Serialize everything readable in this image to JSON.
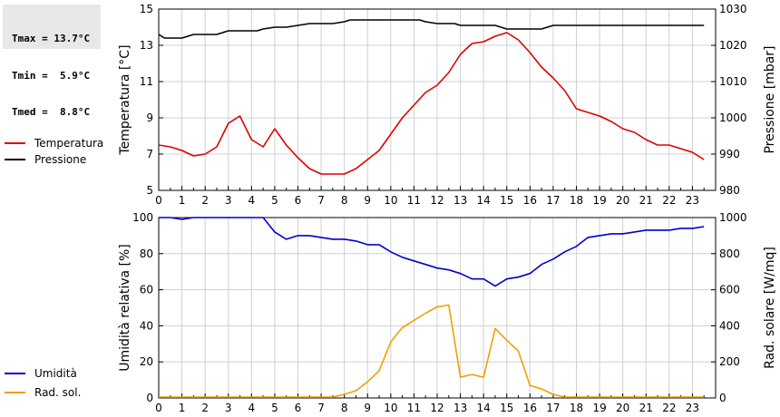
{
  "stats": {
    "tmax": "Tmax = 13.7°C",
    "tmin": "Tmin =  5.9°C",
    "tmed": "Tmed =  8.8°C"
  },
  "colors": {
    "temperatura": "#dd0000",
    "pressione": "#000000",
    "umidita": "#0000cc",
    "radsol": "#f0a000",
    "grid": "#d0d0d0"
  },
  "chart_data": [
    {
      "type": "line",
      "x_ticks": [
        "0",
        "1",
        "2",
        "3",
        "4",
        "5",
        "6",
        "7",
        "8",
        "9",
        "10",
        "11",
        "12",
        "13",
        "14",
        "15",
        "16",
        "17",
        "18",
        "19",
        "20",
        "21",
        "22",
        "23"
      ],
      "xlim": [
        0,
        24
      ],
      "ylabel": "Temperatura [°C]",
      "ylabel_right": "Pressione [mbar]",
      "ylim": [
        5,
        15
      ],
      "ylim_right": [
        980,
        1030
      ],
      "y_ticks": [
        "5",
        "7",
        "9",
        "11",
        "13",
        "15"
      ],
      "y_ticks_right": [
        "980",
        "990",
        "1000",
        "1010",
        "1020",
        "1030"
      ],
      "grid": true,
      "series": [
        {
          "name": "Temperatura",
          "axis": "left",
          "x": [
            0,
            0.5,
            1,
            1.5,
            2,
            2.5,
            3,
            3.5,
            4,
            4.5,
            5,
            5.5,
            6,
            6.5,
            7,
            7.5,
            8,
            8.5,
            9,
            9.5,
            10,
            10.5,
            11,
            11.5,
            12,
            12.5,
            13,
            13.5,
            14,
            14.5,
            15,
            15.5,
            16,
            16.5,
            17,
            17.5,
            18,
            18.5,
            19,
            19.5,
            20,
            20.5,
            21,
            21.5,
            22,
            22.5,
            23,
            23.5
          ],
          "values": [
            7.5,
            7.4,
            7.2,
            6.9,
            7.0,
            7.4,
            8.7,
            9.1,
            7.8,
            7.4,
            8.4,
            7.5,
            6.8,
            6.2,
            5.9,
            5.9,
            5.9,
            6.2,
            6.7,
            7.2,
            8.1,
            9.0,
            9.7,
            10.4,
            10.8,
            11.5,
            12.5,
            13.1,
            13.2,
            13.5,
            13.7,
            13.3,
            12.6,
            11.8,
            11.2,
            10.5,
            9.5,
            9.3,
            9.1,
            8.8,
            8.4,
            8.2,
            7.8,
            7.5,
            7.5,
            7.3,
            7.1,
            6.7
          ]
        },
        {
          "name": "Pressione",
          "axis": "right",
          "x": [
            0,
            0.25,
            0.5,
            1,
            1.25,
            1.5,
            2,
            2.5,
            2.75,
            3,
            3.5,
            4,
            4.25,
            4.5,
            5,
            5.25,
            5.5,
            6,
            6.5,
            6.75,
            7,
            7.5,
            8,
            8.25,
            8.5,
            9,
            9.5,
            10,
            10.5,
            11,
            11.25,
            11.5,
            12,
            12.5,
            12.75,
            13,
            13.5,
            14,
            14.5,
            14.75,
            15,
            15.5,
            16,
            16.5,
            16.75,
            17,
            17.5,
            18,
            23.5
          ],
          "values": [
            1023,
            1022,
            1022,
            1022,
            1022.5,
            1023,
            1023,
            1023,
            1023.5,
            1024,
            1024,
            1024,
            1024,
            1024.5,
            1025,
            1025,
            1025,
            1025.5,
            1026,
            1026,
            1026,
            1026,
            1026.5,
            1027,
            1027,
            1027,
            1027,
            1027,
            1027,
            1027,
            1027,
            1026.5,
            1026,
            1026,
            1026,
            1025.5,
            1025.5,
            1025.5,
            1025.5,
            1025,
            1024.5,
            1024.5,
            1024.5,
            1024.5,
            1025,
            1025.5,
            1025.5,
            1025.5,
            1025.5
          ]
        }
      ],
      "legend": "left"
    },
    {
      "type": "line",
      "x_ticks": [
        "0",
        "1",
        "2",
        "3",
        "4",
        "5",
        "6",
        "7",
        "8",
        "9",
        "10",
        "11",
        "12",
        "13",
        "14",
        "15",
        "16",
        "17",
        "18",
        "19",
        "20",
        "21",
        "22",
        "23"
      ],
      "xlim": [
        0,
        24
      ],
      "ylabel": "Umidità relativa [%]",
      "ylabel_right": "Rad. solare [W/mq]",
      "ylim": [
        0,
        100
      ],
      "ylim_right": [
        0,
        1000
      ],
      "y_ticks": [
        "0",
        "20",
        "40",
        "60",
        "80",
        "100"
      ],
      "y_ticks_right": [
        "0",
        "200",
        "400",
        "600",
        "800",
        "1000"
      ],
      "grid": true,
      "series": [
        {
          "name": "Umidità",
          "axis": "left",
          "x": [
            0,
            0.5,
            1,
            1.5,
            2,
            2.5,
            3,
            3.5,
            4,
            4.5,
            5,
            5.5,
            6,
            6.5,
            7,
            7.5,
            8,
            8.5,
            9,
            9.5,
            10,
            10.5,
            11,
            11.5,
            12,
            12.5,
            13,
            13.5,
            14,
            14.5,
            15,
            15.5,
            16,
            16.5,
            17,
            17.5,
            18,
            18.5,
            19,
            19.5,
            20,
            20.5,
            21,
            21.5,
            22,
            22.5,
            23,
            23.5
          ],
          "values": [
            100,
            100,
            99,
            100,
            100,
            100,
            100,
            100,
            100,
            100,
            92,
            88,
            90,
            90,
            89,
            88,
            88,
            87,
            85,
            85,
            81,
            78,
            76,
            74,
            72,
            71,
            69,
            66,
            66,
            62,
            66,
            67,
            69,
            74,
            77,
            81,
            84,
            89,
            90,
            91,
            91,
            92,
            93,
            93,
            93,
            94,
            94,
            95
          ]
        },
        {
          "name": "Rad. sol.",
          "axis": "right",
          "x": [
            0,
            0.5,
            1,
            1.5,
            2,
            2.5,
            3,
            3.5,
            4,
            4.5,
            5,
            5.5,
            6,
            6.5,
            7,
            7.5,
            8,
            8.5,
            9,
            9.5,
            10,
            10.5,
            11,
            11.5,
            12,
            12.5,
            13,
            13.5,
            14,
            14.5,
            15,
            15.5,
            16,
            16.5,
            17,
            17.5,
            18,
            18.5,
            19,
            19.5,
            20,
            20.5,
            21,
            21.5,
            22,
            22.5,
            23,
            23.5
          ],
          "values": [
            5,
            5,
            5,
            5,
            5,
            5,
            5,
            5,
            5,
            5,
            5,
            5,
            5,
            5,
            5,
            5,
            20,
            40,
            90,
            150,
            310,
            390,
            430,
            470,
            505,
            515,
            115,
            130,
            115,
            385,
            320,
            260,
            70,
            50,
            20,
            5,
            5,
            5,
            5,
            5,
            5,
            5,
            5,
            5,
            5,
            5,
            5,
            5
          ]
        }
      ],
      "legend": "left"
    }
  ]
}
